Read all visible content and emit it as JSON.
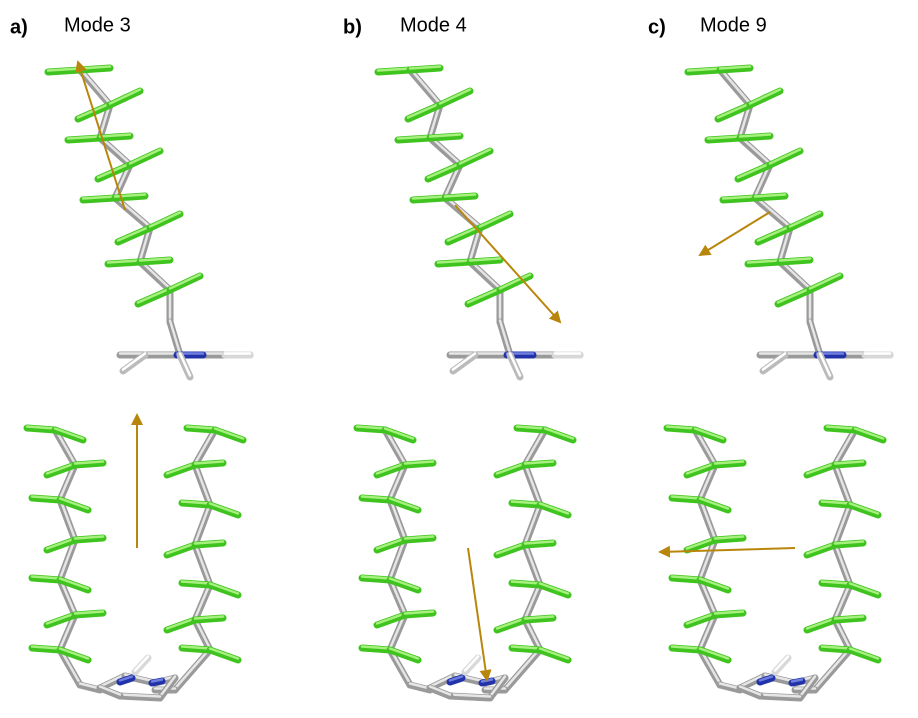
{
  "panels": [
    {
      "label": "a)",
      "title": "Mode 3"
    },
    {
      "label": "b)",
      "title": "Mode 4"
    },
    {
      "label": "c)",
      "title": "Mode 9"
    }
  ]
}
